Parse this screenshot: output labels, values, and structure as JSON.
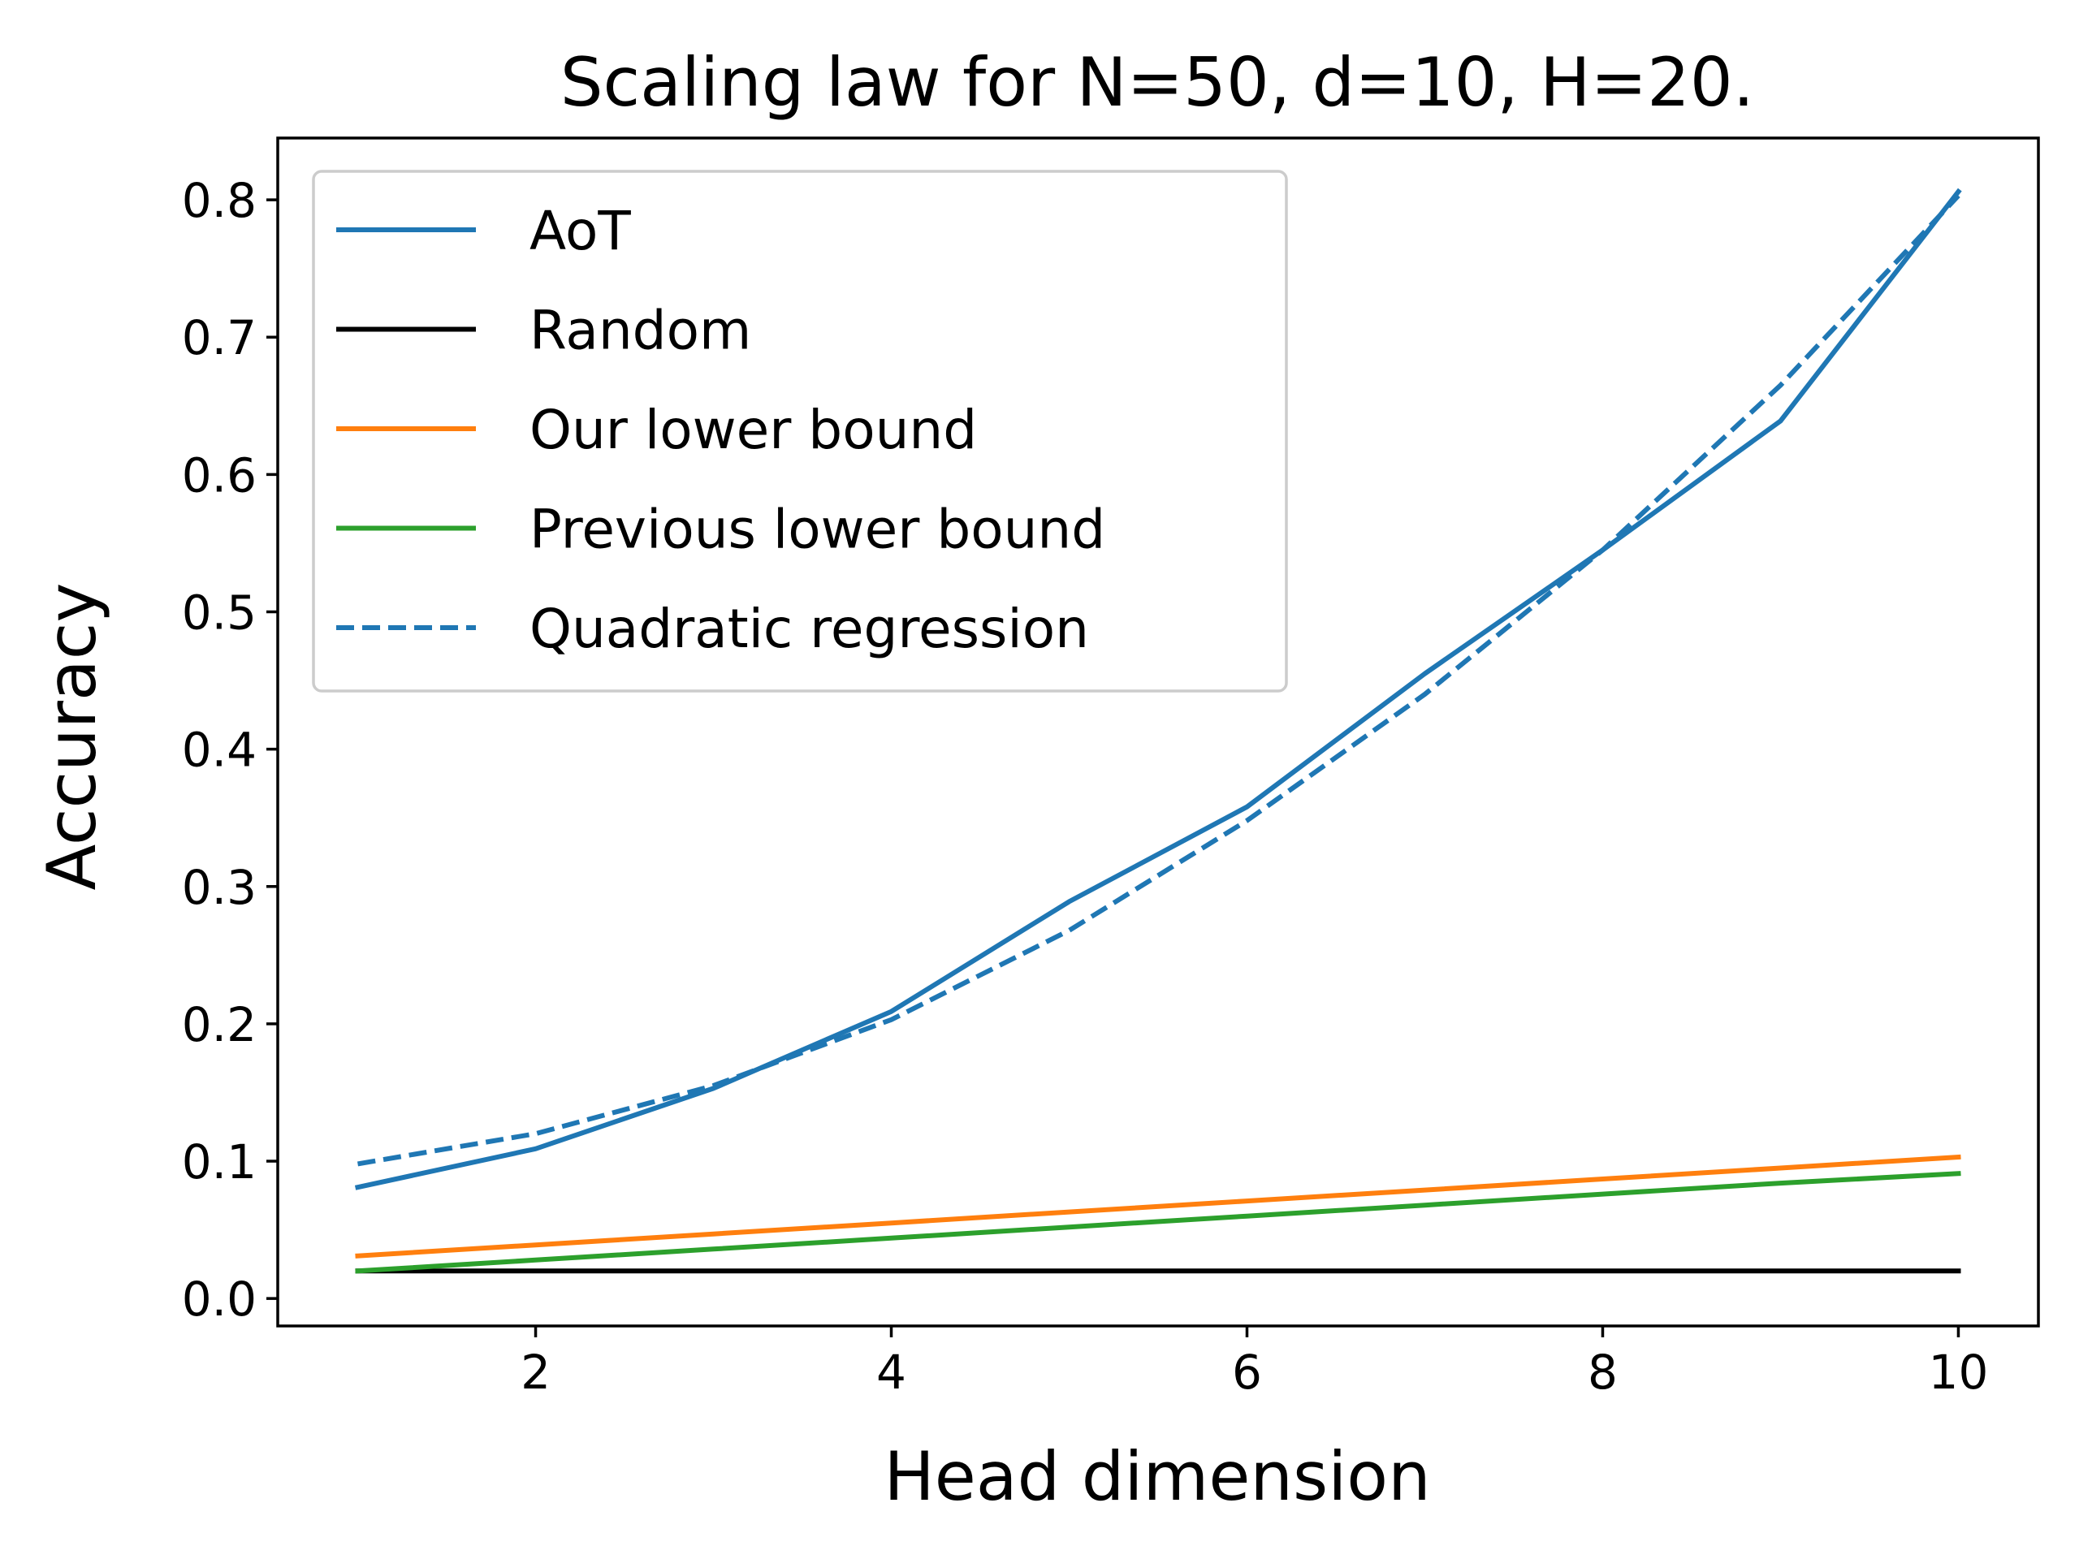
{
  "chart_data": {
    "type": "line",
    "title": "Scaling law for N=50, d=10, H=20.",
    "xlabel": "Head dimension",
    "ylabel": "Accuracy",
    "xlim": [
      0.55,
      10.45
    ],
    "ylim": [
      -0.02,
      0.845
    ],
    "xticks": [
      2,
      4,
      6,
      8,
      10
    ],
    "xtick_labels": [
      "2",
      "4",
      "6",
      "8",
      "10"
    ],
    "yticks": [
      0.0,
      0.1,
      0.2,
      0.3,
      0.4,
      0.5,
      0.6,
      0.7,
      0.8
    ],
    "ytick_labels": [
      "0.0",
      "0.1",
      "0.2",
      "0.3",
      "0.4",
      "0.5",
      "0.6",
      "0.7",
      "0.8"
    ],
    "grid": false,
    "legend_position": "top-left",
    "x": [
      1,
      2,
      3,
      4,
      5,
      6,
      7,
      8,
      9,
      10
    ],
    "series": [
      {
        "name": "AoT",
        "color": "#1f77b4",
        "dash": "solid",
        "values": [
          0.081,
          0.109,
          0.153,
          0.209,
          0.289,
          0.358,
          0.455,
          0.545,
          0.639,
          0.806
        ]
      },
      {
        "name": "Random",
        "color": "#000000",
        "dash": "solid",
        "values": [
          0.02,
          0.02,
          0.02,
          0.02,
          0.02,
          0.02,
          0.02,
          0.02,
          0.02,
          0.02
        ]
      },
      {
        "name": "Our lower bound",
        "color": "#ff7f0e",
        "dash": "solid",
        "values": [
          0.031,
          0.039,
          0.047,
          0.055,
          0.063,
          0.071,
          0.079,
          0.087,
          0.095,
          0.103
        ]
      },
      {
        "name": "Previous lower bound",
        "color": "#2ca02c",
        "dash": "solid",
        "values": [
          0.02,
          0.028,
          0.036,
          0.044,
          0.052,
          0.06,
          0.068,
          0.076,
          0.084,
          0.091
        ]
      },
      {
        "name": "Quadratic regression",
        "color": "#1f77b4",
        "dash": "dashed",
        "values": [
          0.098,
          0.12,
          0.155,
          0.203,
          0.268,
          0.348,
          0.44,
          0.545,
          0.665,
          0.803
        ]
      }
    ]
  }
}
